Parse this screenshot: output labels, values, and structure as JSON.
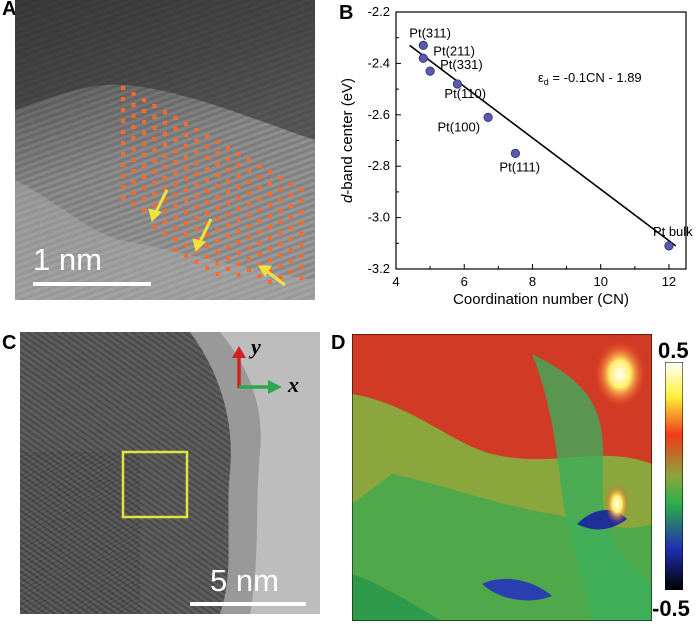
{
  "panels": {
    "a": {
      "label": "A",
      "scale_label": "1 nm"
    },
    "b": {
      "label": "B"
    },
    "c": {
      "label": "C",
      "scale_label": "5 nm",
      "axis_y": "y",
      "axis_x": "x"
    },
    "d": {
      "label": "D",
      "colorbar_max": "0.5",
      "colorbar_min": "-0.5"
    }
  },
  "chart_data": {
    "type": "scatter",
    "xlabel": "Coordination number (CN)",
    "ylabel_italic": "d",
    "ylabel_rest": "-band center (eV)",
    "xlim": [
      4,
      12.5
    ],
    "ylim": [
      -3.2,
      -2.2
    ],
    "xticks": [
      "4",
      "6",
      "8",
      "10",
      "12"
    ],
    "yticks": [
      "-2.2",
      "-2.4",
      "-2.6",
      "-2.8",
      "-3.0",
      "-3.2"
    ],
    "points": [
      {
        "label": "Pt(311)",
        "x": 4.8,
        "y": -2.33
      },
      {
        "label": "Pt(211)",
        "x": 4.8,
        "y": -2.38
      },
      {
        "label": "Pt(331)",
        "x": 5.0,
        "y": -2.43
      },
      {
        "label": "Pt(110)",
        "x": 5.8,
        "y": -2.48
      },
      {
        "label": "Pt(100)",
        "x": 6.7,
        "y": -2.61
      },
      {
        "label": "Pt(111)",
        "x": 7.5,
        "y": -2.75
      },
      {
        "label": "Pt bulk",
        "x": 12.0,
        "y": -3.11
      }
    ],
    "fit_line": {
      "x": [
        4.4,
        12.2
      ],
      "y": [
        -2.33,
        -3.11
      ]
    },
    "equation_prefix": "ε",
    "equation_sub": "d",
    "equation_rest": " = -0.1CN - 1.89",
    "point_color": "#5a5ab0"
  }
}
